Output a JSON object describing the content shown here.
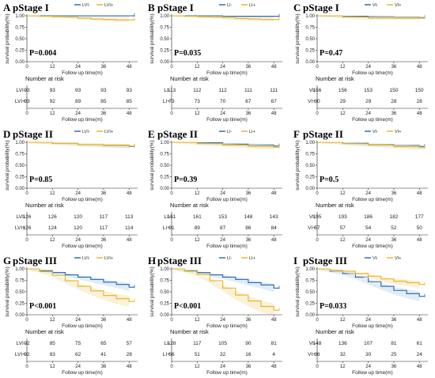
{
  "colors": {
    "group1": "#2563ad",
    "group2": "#e6b422",
    "band1": "#c9dcf0",
    "band2": "#f6e6b4"
  },
  "common": {
    "ylabel": "survival probability(%)",
    "xlabel": "Follow up time(m)",
    "risk_title": "Number at risk",
    "yticks": [
      "0.00",
      "0.25",
      "0.50",
      "0.75",
      "1.00"
    ],
    "xticks": [
      "0",
      "12",
      "24",
      "36",
      "48"
    ]
  },
  "chart_data": [
    {
      "id": "A",
      "letter": "A",
      "stage": "pStage I",
      "pvalue": "P=0.004",
      "type": "line",
      "legend": [
        "LVI-",
        "LVI+"
      ],
      "risk_labels": [
        "LVI-",
        "LVI+"
      ],
      "xlim": [
        0,
        52
      ],
      "ylim": [
        0,
        1
      ],
      "series": [
        {
          "name": "LVI-",
          "x": [
            0,
            12,
            24,
            36,
            48
          ],
          "y": [
            1.0,
            1.0,
            1.0,
            1.0,
            1.0
          ]
        },
        {
          "name": "LVI+",
          "x": [
            0,
            6,
            12,
            18,
            24,
            30,
            36,
            42,
            48
          ],
          "y": [
            1.0,
            0.99,
            0.98,
            0.97,
            0.95,
            0.93,
            0.92,
            0.91,
            0.91
          ]
        }
      ],
      "risk": [
        [
          93,
          93,
          93,
          93,
          93
        ],
        [
          93,
          92,
          89,
          85,
          85
        ]
      ]
    },
    {
      "id": "B",
      "letter": "B",
      "stage": "pStage I",
      "pvalue": "P=0.035",
      "type": "line",
      "legend": [
        "LI-",
        "LI+"
      ],
      "risk_labels": [
        "LI-",
        "LI+"
      ],
      "xlim": [
        0,
        52
      ],
      "ylim": [
        0,
        1
      ],
      "series": [
        {
          "name": "LI-",
          "x": [
            0,
            12,
            24,
            36,
            48
          ],
          "y": [
            1.0,
            1.0,
            0.99,
            0.99,
            0.99
          ]
        },
        {
          "name": "LI+",
          "x": [
            0,
            6,
            12,
            18,
            24,
            30,
            36,
            42,
            48
          ],
          "y": [
            1.0,
            0.99,
            0.98,
            0.97,
            0.96,
            0.94,
            0.93,
            0.92,
            0.92
          ]
        }
      ],
      "risk": [
        [
          113,
          112,
          112,
          111,
          111
        ],
        [
          73,
          73,
          70,
          67,
          67
        ]
      ]
    },
    {
      "id": "C",
      "letter": "C",
      "stage": "pStage I",
      "pvalue": "P=0.47",
      "type": "line",
      "legend": [
        "VI-",
        "VI+"
      ],
      "risk_labels": [
        "VI-",
        "VI+"
      ],
      "xlim": [
        0,
        52
      ],
      "ylim": [
        0,
        1
      ],
      "series": [
        {
          "name": "VI-",
          "x": [
            0,
            12,
            24,
            36,
            48
          ],
          "y": [
            1.0,
            0.99,
            0.98,
            0.97,
            0.96
          ]
        },
        {
          "name": "VI+",
          "x": [
            0,
            12,
            24,
            36,
            48
          ],
          "y": [
            1.0,
            0.97,
            0.95,
            0.95,
            0.95
          ]
        }
      ],
      "risk": [
        [
          156,
          156,
          153,
          150,
          150
        ],
        [
          30,
          29,
          29,
          28,
          28
        ]
      ]
    },
    {
      "id": "D",
      "letter": "D",
      "stage": "pStage II",
      "pvalue": "P=0.85",
      "type": "line",
      "legend": [
        "LVI-",
        "LVI+"
      ],
      "risk_labels": [
        "LVI-",
        "LVI+"
      ],
      "xlim": [
        0,
        52
      ],
      "ylim": [
        0,
        1
      ],
      "series": [
        {
          "name": "LVI-",
          "x": [
            0,
            12,
            24,
            36,
            48
          ],
          "y": [
            1.0,
            0.98,
            0.95,
            0.93,
            0.91
          ]
        },
        {
          "name": "LVI+",
          "x": [
            0,
            12,
            24,
            36,
            48
          ],
          "y": [
            1.0,
            0.98,
            0.95,
            0.94,
            0.92
          ]
        }
      ],
      "risk": [
        [
          126,
          126,
          120,
          117,
          113
        ],
        [
          126,
          124,
          120,
          117,
          114
        ]
      ]
    },
    {
      "id": "E",
      "letter": "E",
      "stage": "pStage II",
      "pvalue": "P=0.39",
      "type": "line",
      "legend": [
        "LI-",
        "LI+"
      ],
      "risk_labels": [
        "LI-",
        "LI+"
      ],
      "xlim": [
        0,
        52
      ],
      "ylim": [
        0,
        1
      ],
      "series": [
        {
          "name": "LI-",
          "x": [
            0,
            12,
            24,
            36,
            48
          ],
          "y": [
            1.0,
            0.99,
            0.96,
            0.94,
            0.92
          ]
        },
        {
          "name": "LI+",
          "x": [
            0,
            12,
            24,
            36,
            48
          ],
          "y": [
            1.0,
            0.97,
            0.94,
            0.91,
            0.89
          ]
        }
      ],
      "risk": [
        [
          161,
          161,
          153,
          148,
          143
        ],
        [
          91,
          89,
          87,
          86,
          84
        ]
      ]
    },
    {
      "id": "F",
      "letter": "F",
      "stage": "pStage II",
      "pvalue": "P=0.5",
      "type": "line",
      "legend": [
        "VI-",
        "VI+"
      ],
      "risk_labels": [
        "VI-",
        "VI+"
      ],
      "xlim": [
        0,
        52
      ],
      "ylim": [
        0,
        1
      ],
      "series": [
        {
          "name": "VI-",
          "x": [
            0,
            12,
            24,
            36,
            48
          ],
          "y": [
            1.0,
            0.98,
            0.95,
            0.93,
            0.91
          ]
        },
        {
          "name": "VI+",
          "x": [
            0,
            12,
            24,
            36,
            48
          ],
          "y": [
            1.0,
            0.97,
            0.94,
            0.91,
            0.88
          ]
        }
      ],
      "risk": [
        [
          195,
          193,
          186,
          182,
          177
        ],
        [
          57,
          57,
          54,
          52,
          50
        ]
      ]
    },
    {
      "id": "G",
      "letter": "G",
      "stage": "pStage III",
      "pvalue": "P<0.001",
      "type": "line",
      "legend": [
        "LVI-",
        "LVI+"
      ],
      "risk_labels": [
        "LVI-",
        "LVI+"
      ],
      "xlim": [
        0,
        52
      ],
      "ylim": [
        0,
        1
      ],
      "series": [
        {
          "name": "LVI-",
          "x": [
            0,
            6,
            12,
            18,
            24,
            30,
            36,
            42,
            48
          ],
          "y": [
            1.0,
            0.96,
            0.92,
            0.87,
            0.82,
            0.77,
            0.71,
            0.66,
            0.6
          ]
        },
        {
          "name": "LVI+",
          "x": [
            0,
            6,
            12,
            18,
            24,
            30,
            36,
            42,
            48
          ],
          "y": [
            1.0,
            0.94,
            0.86,
            0.74,
            0.62,
            0.52,
            0.42,
            0.35,
            0.29
          ]
        }
      ],
      "risk": [
        [
          92,
          85,
          75,
          65,
          57
        ],
        [
          92,
          83,
          62,
          41,
          28
        ]
      ]
    },
    {
      "id": "H",
      "letter": "H",
      "stage": "pStage III",
      "pvalue": "P<0.001",
      "type": "line",
      "legend": [
        "LI-",
        "LI+"
      ],
      "risk_labels": [
        "LI-",
        "LI+"
      ],
      "xlim": [
        0,
        52
      ],
      "ylim": [
        0,
        1
      ],
      "series": [
        {
          "name": "LI-",
          "x": [
            0,
            6,
            12,
            18,
            24,
            30,
            36,
            42,
            48
          ],
          "y": [
            1.0,
            0.96,
            0.92,
            0.87,
            0.82,
            0.77,
            0.7,
            0.65,
            0.58
          ]
        },
        {
          "name": "LI+",
          "x": [
            0,
            6,
            12,
            18,
            24,
            30,
            36,
            42,
            48
          ],
          "y": [
            1.0,
            0.95,
            0.88,
            0.74,
            0.58,
            0.43,
            0.3,
            0.18,
            0.1
          ]
        }
      ],
      "risk": [
        [
          128,
          117,
          105,
          90,
          81
        ],
        [
          56,
          51,
          32,
          16,
          4
        ]
      ]
    },
    {
      "id": "I",
      "letter": "I",
      "stage": "pStage III",
      "pvalue": "P=0.033",
      "type": "line",
      "legend": [
        "VI-",
        "VI+"
      ],
      "risk_labels": [
        "VI-",
        "VI+"
      ],
      "xlim": [
        0,
        52
      ],
      "ylim": [
        0,
        1
      ],
      "series": [
        {
          "name": "VI-",
          "x": [
            0,
            6,
            12,
            18,
            24,
            30,
            36,
            42,
            48
          ],
          "y": [
            1.0,
            0.95,
            0.9,
            0.82,
            0.72,
            0.62,
            0.53,
            0.46,
            0.4
          ]
        },
        {
          "name": "VI+",
          "x": [
            0,
            6,
            12,
            18,
            24,
            30,
            36,
            42,
            48
          ],
          "y": [
            1.0,
            0.97,
            0.95,
            0.9,
            0.84,
            0.78,
            0.73,
            0.7,
            0.66
          ]
        }
      ],
      "risk": [
        [
          148,
          136,
          107,
          81,
          61
        ],
        [
          36,
          32,
          30,
          25,
          24
        ]
      ]
    }
  ]
}
